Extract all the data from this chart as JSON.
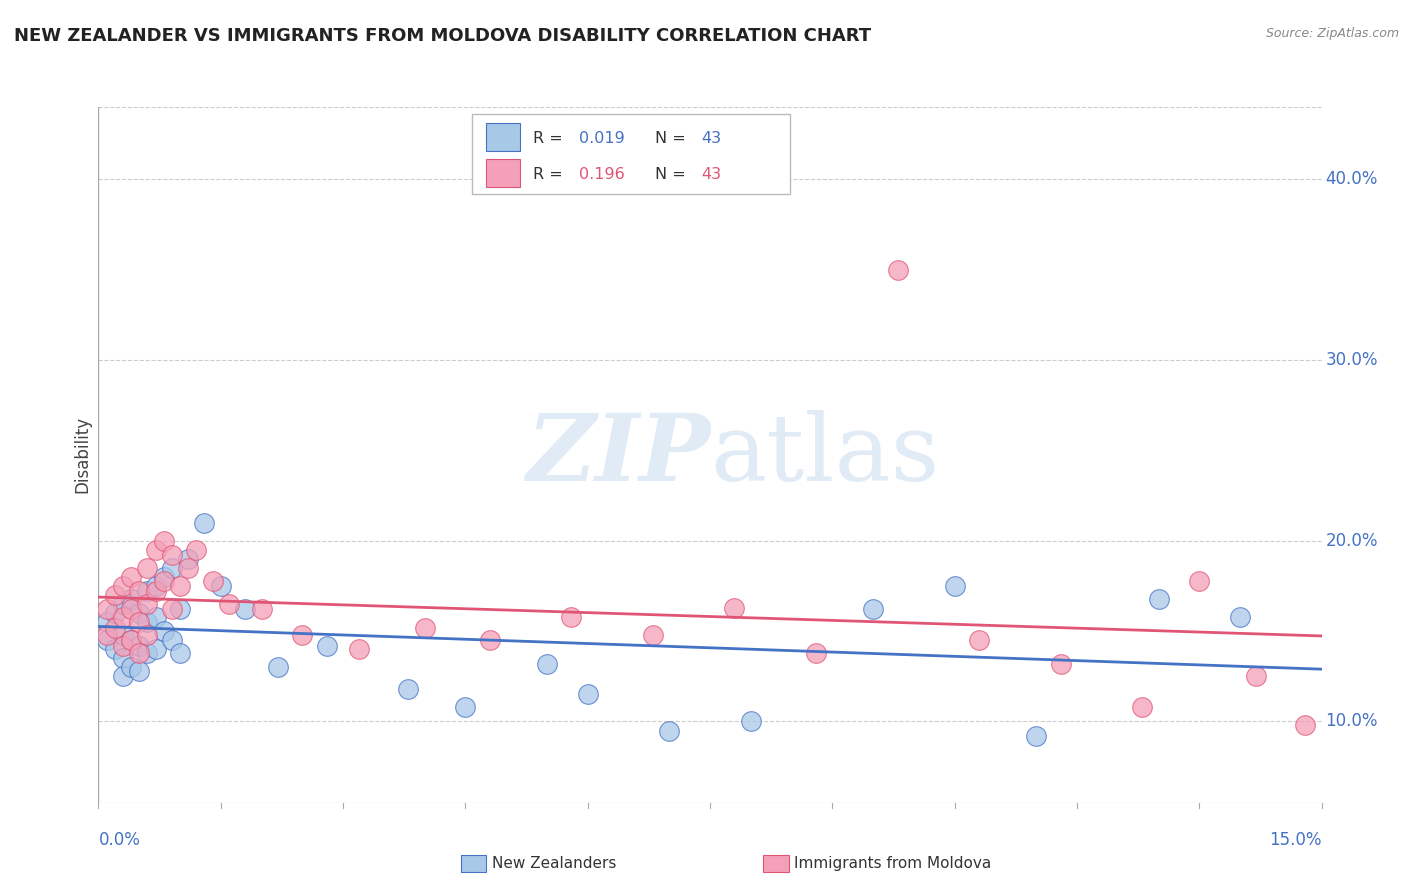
{
  "title": "NEW ZEALANDER VS IMMIGRANTS FROM MOLDOVA DISABILITY CORRELATION CHART",
  "source": "Source: ZipAtlas.com",
  "ylabel": "Disability",
  "right_yticks": [
    "10.0%",
    "20.0%",
    "30.0%",
    "40.0%"
  ],
  "right_ytick_vals": [
    0.1,
    0.2,
    0.3,
    0.4
  ],
  "xlim": [
    0.0,
    0.15
  ],
  "ylim": [
    0.055,
    0.44
  ],
  "legend_label1": "New Zealanders",
  "legend_label2": "Immigrants from Moldova",
  "color_blue": "#a8c8e8",
  "color_pink": "#f4a0b8",
  "line_color_blue": "#4472c4",
  "line_color_pink": "#e05575",
  "r_blue": "0.019",
  "r_pink": "0.196",
  "n_blue": "43",
  "n_pink": "43",
  "watermark_zip": "ZIP",
  "watermark_atlas": "atlas",
  "blue_x": [
    0.001,
    0.001,
    0.002,
    0.002,
    0.003,
    0.003,
    0.003,
    0.003,
    0.004,
    0.004,
    0.004,
    0.005,
    0.005,
    0.005,
    0.006,
    0.006,
    0.006,
    0.007,
    0.007,
    0.007,
    0.008,
    0.008,
    0.009,
    0.009,
    0.01,
    0.01,
    0.011,
    0.013,
    0.015,
    0.018,
    0.022,
    0.028,
    0.038,
    0.045,
    0.055,
    0.06,
    0.07,
    0.08,
    0.095,
    0.105,
    0.115,
    0.13,
    0.14
  ],
  "blue_y": [
    0.155,
    0.145,
    0.16,
    0.14,
    0.165,
    0.148,
    0.135,
    0.125,
    0.168,
    0.145,
    0.13,
    0.16,
    0.142,
    0.128,
    0.172,
    0.155,
    0.138,
    0.175,
    0.158,
    0.14,
    0.18,
    0.15,
    0.185,
    0.145,
    0.162,
    0.138,
    0.19,
    0.21,
    0.175,
    0.162,
    0.13,
    0.142,
    0.118,
    0.108,
    0.132,
    0.115,
    0.095,
    0.1,
    0.162,
    0.175,
    0.092,
    0.168,
    0.158
  ],
  "pink_x": [
    0.001,
    0.001,
    0.002,
    0.002,
    0.003,
    0.003,
    0.003,
    0.004,
    0.004,
    0.004,
    0.005,
    0.005,
    0.005,
    0.006,
    0.006,
    0.006,
    0.007,
    0.007,
    0.008,
    0.008,
    0.009,
    0.009,
    0.01,
    0.011,
    0.012,
    0.014,
    0.016,
    0.02,
    0.025,
    0.032,
    0.04,
    0.048,
    0.058,
    0.068,
    0.078,
    0.088,
    0.098,
    0.108,
    0.118,
    0.128,
    0.135,
    0.142,
    0.148
  ],
  "pink_y": [
    0.162,
    0.148,
    0.17,
    0.152,
    0.175,
    0.158,
    0.142,
    0.18,
    0.162,
    0.145,
    0.172,
    0.155,
    0.138,
    0.185,
    0.165,
    0.148,
    0.195,
    0.172,
    0.2,
    0.178,
    0.192,
    0.162,
    0.175,
    0.185,
    0.195,
    0.178,
    0.165,
    0.162,
    0.148,
    0.14,
    0.152,
    0.145,
    0.158,
    0.148,
    0.163,
    0.138,
    0.35,
    0.145,
    0.132,
    0.108,
    0.178,
    0.125,
    0.098
  ]
}
